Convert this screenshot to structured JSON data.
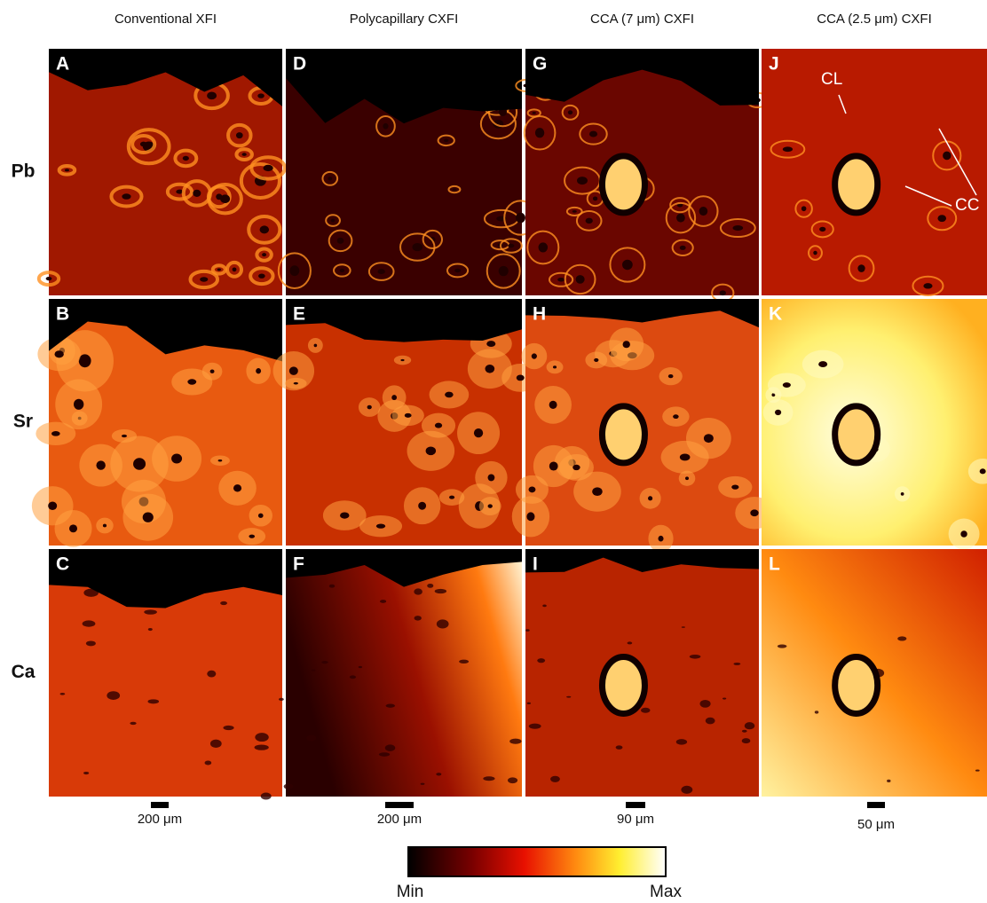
{
  "column_headers": [
    "Conventional XFI",
    "Polycapillary CXFI",
    "CCA (7 μm) CXFI",
    "CCA (2.5 μm) CXFI"
  ],
  "row_labels": [
    "Pb",
    "Sr",
    "Ca"
  ],
  "panel_labels": [
    [
      "A",
      "D",
      "G",
      "J"
    ],
    [
      "B",
      "E",
      "H",
      "K"
    ],
    [
      "C",
      "F",
      "I",
      "L"
    ]
  ],
  "annotations": [
    "CL",
    "CC"
  ],
  "scale_bars": [
    "200 μm",
    "200 μm",
    "90 μm",
    "50 μm"
  ],
  "colorbar": {
    "min_label": "Min",
    "max_label": "Max"
  }
}
